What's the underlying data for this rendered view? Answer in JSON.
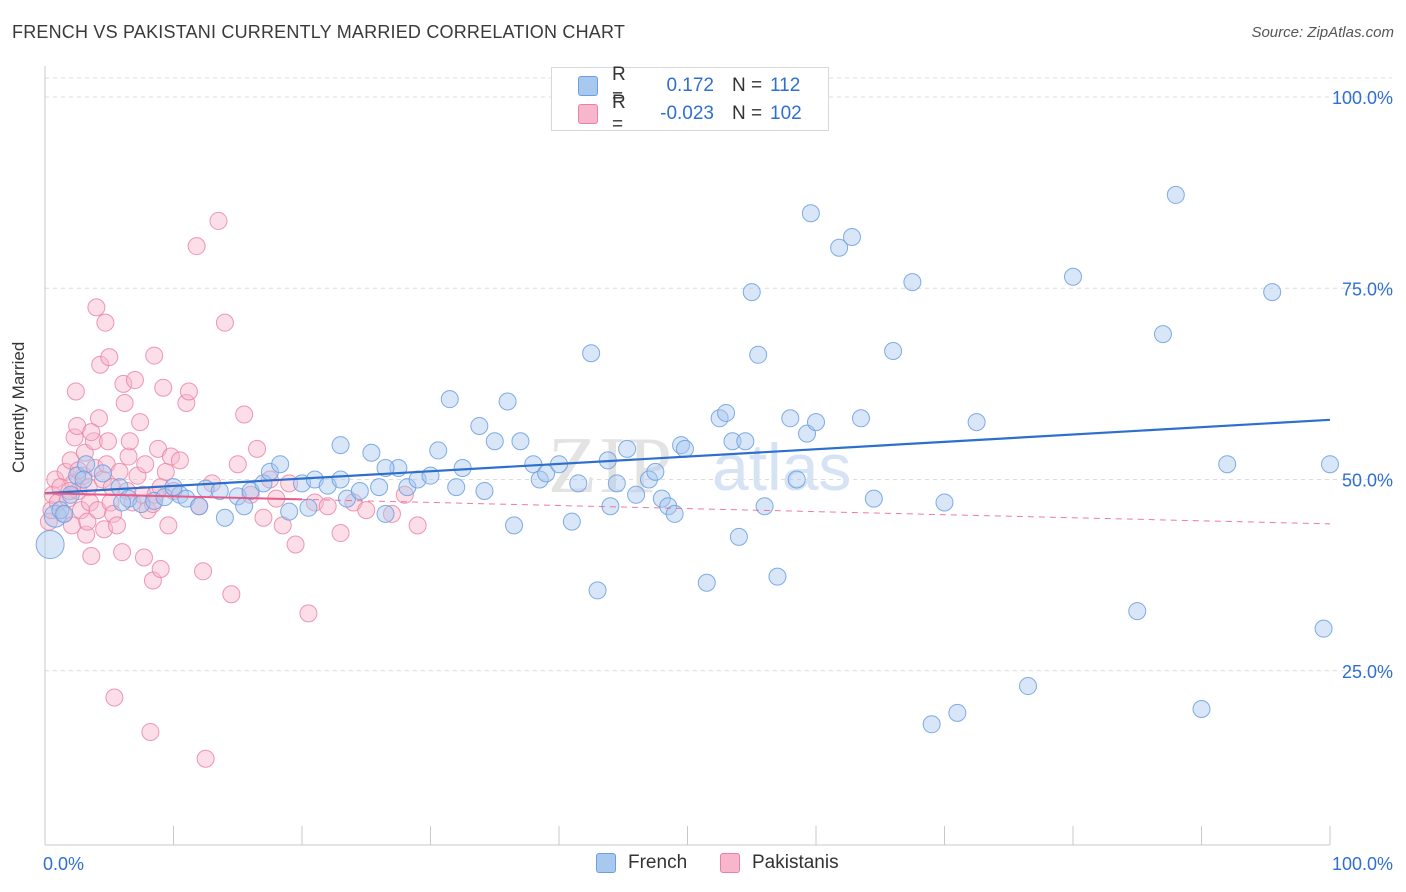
{
  "title": "FRENCH VS PAKISTANI CURRENTLY MARRIED CORRELATION CHART",
  "source": "Source: ZipAtlas.com",
  "watermark": {
    "zip": "ZIP",
    "atlas": "atlas"
  },
  "legend": {
    "french": {
      "r_label": "R =",
      "r_value": "0.172",
      "n_label": "N =",
      "n_value": "112"
    },
    "pakistani": {
      "r_label": "R =",
      "r_value": "-0.023",
      "n_label": "N =",
      "n_value": "102"
    }
  },
  "bottom_legend": {
    "french": "French",
    "pakistani": "Pakistanis"
  },
  "colors": {
    "french_fill": "#a9c8f0",
    "french_stroke": "#6a9fe0",
    "french_line": "#2d6fcc",
    "pakistani_fill": "#f7b6cb",
    "pakistani_stroke": "#ea7fa0",
    "pakistani_line": "#e75a8a",
    "axis_text": "#2f6fd0",
    "grid": "#dcdcdc"
  },
  "chart_data": {
    "type": "scatter",
    "title": "FRENCH VS PAKISTANI CURRENTLY MARRIED CORRELATION CHART",
    "xlabel": "",
    "ylabel": "Currently Married",
    "xlim": [
      0,
      100
    ],
    "ylim": [
      0,
      105
    ],
    "x_tick_labels": [
      "0.0%",
      "100.0%"
    ],
    "y_ticks": [
      25,
      50,
      75,
      100
    ],
    "y_tick_labels": [
      "25.0%",
      "50.0%",
      "75.0%",
      "100.0%"
    ],
    "grid": true,
    "series": [
      {
        "name": "French",
        "r": 0.172,
        "n": 112,
        "trend": {
          "x": [
            0,
            100
          ],
          "y": [
            48.2,
            57.8
          ]
        },
        "points": [
          [
            0.4,
            41.5
          ],
          [
            0.8,
            45.2
          ],
          [
            1.2,
            46.0
          ],
          [
            2.0,
            48.0
          ],
          [
            2.5,
            50.5
          ],
          [
            3.2,
            52.0
          ],
          [
            4.5,
            50.8
          ],
          [
            5.8,
            49.0
          ],
          [
            6.5,
            47.5
          ],
          [
            7.5,
            46.8
          ],
          [
            8.5,
            47.2
          ],
          [
            9.3,
            47.7
          ],
          [
            10.5,
            48.0
          ],
          [
            11.0,
            47.5
          ],
          [
            12.0,
            46.5
          ],
          [
            12.5,
            48.8
          ],
          [
            13.6,
            48.5
          ],
          [
            14.0,
            45.0
          ],
          [
            15.0,
            47.8
          ],
          [
            16.0,
            48.5
          ],
          [
            17.0,
            49.5
          ],
          [
            17.5,
            51.0
          ],
          [
            18.3,
            52.0
          ],
          [
            19.0,
            45.8
          ],
          [
            20.0,
            49.5
          ],
          [
            20.5,
            46.3
          ],
          [
            21.0,
            50.0
          ],
          [
            22.0,
            49.2
          ],
          [
            23.0,
            50.0
          ],
          [
            23.5,
            47.5
          ],
          [
            23.0,
            54.5
          ],
          [
            24.5,
            48.5
          ],
          [
            25.4,
            53.5
          ],
          [
            26.0,
            49.0
          ],
          [
            26.5,
            45.5
          ],
          [
            27.5,
            51.5
          ],
          [
            28.2,
            49.0
          ],
          [
            29.0,
            50.0
          ],
          [
            30.0,
            50.5
          ],
          [
            30.6,
            53.8
          ],
          [
            31.5,
            60.5
          ],
          [
            32.0,
            49.0
          ],
          [
            32.5,
            51.5
          ],
          [
            33.8,
            57.0
          ],
          [
            34.2,
            48.5
          ],
          [
            35.0,
            55.0
          ],
          [
            36.0,
            60.2
          ],
          [
            36.5,
            44.0
          ],
          [
            37.0,
            55.0
          ],
          [
            38.0,
            52.0
          ],
          [
            38.5,
            50.0
          ],
          [
            39.0,
            50.8
          ],
          [
            40.0,
            52.0
          ],
          [
            41.0,
            44.5
          ],
          [
            41.5,
            49.5
          ],
          [
            42.5,
            66.5
          ],
          [
            43.0,
            35.5
          ],
          [
            43.8,
            52.5
          ],
          [
            44.0,
            46.5
          ],
          [
            44.5,
            49.5
          ],
          [
            45.3,
            54.0
          ],
          [
            46.0,
            48.0
          ],
          [
            47.0,
            50.0
          ],
          [
            47.5,
            51.0
          ],
          [
            48.0,
            47.5
          ],
          [
            48.5,
            46.5
          ],
          [
            49.0,
            45.5
          ],
          [
            49.5,
            54.5
          ],
          [
            49.8,
            54.0
          ],
          [
            51.5,
            36.5
          ],
          [
            52.5,
            58.0
          ],
          [
            53.0,
            58.7
          ],
          [
            53.5,
            55.0
          ],
          [
            54.0,
            42.5
          ],
          [
            54.5,
            55.0
          ],
          [
            55.0,
            74.5
          ],
          [
            55.5,
            66.3
          ],
          [
            56.0,
            46.5
          ],
          [
            57.0,
            37.3
          ],
          [
            58.0,
            58.0
          ],
          [
            58.5,
            50.0
          ],
          [
            59.3,
            56.0
          ],
          [
            59.6,
            84.8
          ],
          [
            60.0,
            57.5
          ],
          [
            61.8,
            80.3
          ],
          [
            62.8,
            81.7
          ],
          [
            63.5,
            58.0
          ],
          [
            64.5,
            47.5
          ],
          [
            66.0,
            66.8
          ],
          [
            67.5,
            75.8
          ],
          [
            69.0,
            18.0
          ],
          [
            70.0,
            47.0
          ],
          [
            71.0,
            19.5
          ],
          [
            72.5,
            57.5
          ],
          [
            76.5,
            23.0
          ],
          [
            80.0,
            76.5
          ],
          [
            85.0,
            32.8
          ],
          [
            87.0,
            69.0
          ],
          [
            90.0,
            20.0
          ],
          [
            92.0,
            52.0
          ],
          [
            95.5,
            74.5
          ],
          [
            99.5,
            30.5
          ],
          [
            88.0,
            87.2
          ],
          [
            100.0,
            52.0
          ],
          [
            1.5,
            45.5
          ],
          [
            3.0,
            50.0
          ],
          [
            6.0,
            47.0
          ],
          [
            10.0,
            49.0
          ],
          [
            15.5,
            46.5
          ],
          [
            26.5,
            51.5
          ]
        ]
      },
      {
        "name": "Pakistanis",
        "r": -0.023,
        "n": 102,
        "trend": {
          "x": [
            0,
            100
          ],
          "y": [
            48.2,
            44.2
          ]
        },
        "points": [
          [
            0.3,
            44.5
          ],
          [
            0.5,
            46.0
          ],
          [
            0.6,
            48.0
          ],
          [
            0.8,
            50.0
          ],
          [
            1.0,
            47.0
          ],
          [
            1.2,
            49.0
          ],
          [
            1.4,
            45.5
          ],
          [
            1.6,
            51.0
          ],
          [
            1.8,
            47.5
          ],
          [
            2.0,
            52.5
          ],
          [
            2.1,
            44.0
          ],
          [
            2.2,
            49.5
          ],
          [
            2.3,
            55.5
          ],
          [
            2.4,
            61.5
          ],
          [
            2.5,
            57.0
          ],
          [
            2.6,
            48.5
          ],
          [
            2.8,
            46.0
          ],
          [
            3.0,
            50.5
          ],
          [
            3.1,
            53.5
          ],
          [
            3.2,
            42.8
          ],
          [
            3.3,
            44.5
          ],
          [
            3.4,
            49.0
          ],
          [
            3.5,
            47.0
          ],
          [
            3.6,
            40.0
          ],
          [
            3.8,
            55.0
          ],
          [
            3.9,
            51.5
          ],
          [
            4.0,
            72.5
          ],
          [
            4.1,
            46.0
          ],
          [
            4.2,
            58.0
          ],
          [
            4.3,
            65.0
          ],
          [
            4.5,
            50.0
          ],
          [
            4.6,
            43.5
          ],
          [
            4.7,
            70.5
          ],
          [
            4.8,
            52.0
          ],
          [
            4.9,
            55.0
          ],
          [
            5.0,
            66.0
          ],
          [
            5.1,
            47.0
          ],
          [
            5.2,
            49.0
          ],
          [
            5.3,
            45.5
          ],
          [
            5.4,
            21.5
          ],
          [
            5.6,
            44.0
          ],
          [
            5.8,
            51.0
          ],
          [
            6.0,
            40.5
          ],
          [
            6.1,
            62.5
          ],
          [
            6.2,
            60.0
          ],
          [
            6.4,
            48.5
          ],
          [
            6.5,
            53.0
          ],
          [
            6.6,
            55.0
          ],
          [
            6.8,
            47.0
          ],
          [
            7.0,
            63.0
          ],
          [
            7.2,
            50.5
          ],
          [
            7.4,
            57.5
          ],
          [
            7.6,
            48.0
          ],
          [
            7.8,
            52.0
          ],
          [
            8.0,
            46.0
          ],
          [
            8.2,
            17.0
          ],
          [
            8.4,
            36.8
          ],
          [
            8.5,
            66.2
          ],
          [
            8.6,
            48.0
          ],
          [
            8.8,
            54.0
          ],
          [
            9.0,
            49.0
          ],
          [
            9.2,
            62.0
          ],
          [
            9.4,
            51.0
          ],
          [
            9.6,
            44.0
          ],
          [
            9.8,
            53.0
          ],
          [
            10.0,
            48.5
          ],
          [
            10.5,
            52.5
          ],
          [
            11.0,
            60.0
          ],
          [
            11.2,
            61.5
          ],
          [
            11.8,
            80.5
          ],
          [
            12.0,
            46.5
          ],
          [
            12.3,
            38.0
          ],
          [
            12.5,
            13.5
          ],
          [
            13.0,
            49.5
          ],
          [
            13.5,
            83.8
          ],
          [
            14.0,
            70.5
          ],
          [
            14.5,
            35.0
          ],
          [
            15.0,
            52.0
          ],
          [
            15.5,
            58.5
          ],
          [
            16.0,
            48.0
          ],
          [
            16.5,
            54.0
          ],
          [
            17.0,
            45.0
          ],
          [
            17.5,
            50.0
          ],
          [
            18.0,
            47.5
          ],
          [
            18.5,
            44.0
          ],
          [
            19.0,
            49.5
          ],
          [
            19.5,
            41.5
          ],
          [
            20.5,
            32.5
          ],
          [
            21.0,
            47.0
          ],
          [
            22.0,
            46.5
          ],
          [
            23.0,
            43.0
          ],
          [
            24.0,
            47.0
          ],
          [
            25.0,
            46.0
          ],
          [
            27.0,
            45.5
          ],
          [
            28.0,
            48.0
          ],
          [
            29.0,
            44.0
          ],
          [
            7.7,
            39.8
          ],
          [
            9.0,
            38.3
          ],
          [
            8.4,
            46.8
          ],
          [
            1.9,
            48.5
          ],
          [
            2.6,
            51.2
          ],
          [
            3.6,
            56.2
          ]
        ]
      }
    ]
  }
}
